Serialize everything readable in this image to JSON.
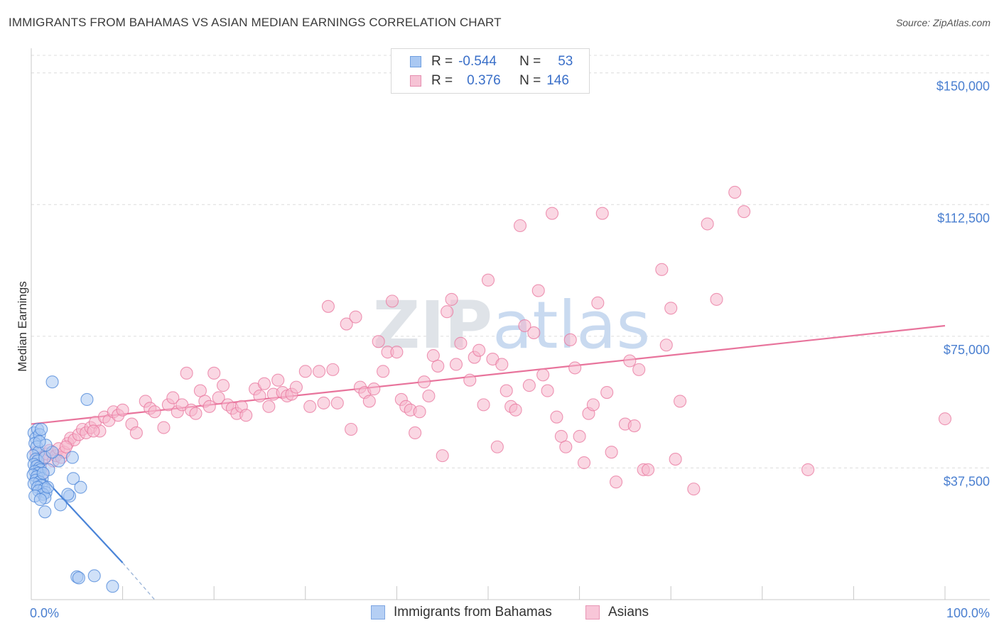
{
  "title": "IMMIGRANTS FROM BAHAMAS VS ASIAN MEDIAN EARNINGS CORRELATION CHART",
  "source": "Source: ZipAtlas.com",
  "legend": {
    "rows": [
      {
        "r_label": "R =",
        "r_value": "-0.544",
        "n_label": "N =",
        "n_value": "53"
      },
      {
        "r_label": "R =",
        "r_value": "0.376",
        "n_label": "N =",
        "n_value": "146"
      }
    ]
  },
  "bottom_legend": [
    "Immigrants from Bahamas",
    "Asians"
  ],
  "colors": {
    "blue": "#4a84d8",
    "blue_fill": "#a9c8f2",
    "pink": "#e8749c",
    "pink_fill": "#f6b6cc",
    "grid": "#dcdcdc",
    "axis_text": "#4a7fd0"
  },
  "chart_data": {
    "type": "scatter",
    "title": "IMMIGRANTS FROM BAHAMAS VS ASIAN MEDIAN EARNINGS CORRELATION CHART",
    "xlabel": "",
    "ylabel": "Median Earnings",
    "xlim": [
      0,
      100
    ],
    "ylim": [
      0,
      155000
    ],
    "x_tick_labels": [
      "0.0%",
      "100.0%"
    ],
    "y_ticks": [
      37500,
      75000,
      112500,
      150000
    ],
    "y_tick_labels": [
      "$37,500",
      "$75,000",
      "$112,500",
      "$150,000"
    ],
    "watermark": "ZIPatlas",
    "series": [
      {
        "name": "Immigrants from Bahamas",
        "color": "blue",
        "trend": {
          "x": [
            0,
            10
          ],
          "y": [
            38500,
            10500
          ],
          "dashed_to": {
            "x": 13.5,
            "y": 0
          }
        },
        "points": [
          [
            0.3,
            47500
          ],
          [
            0.5,
            46000
          ],
          [
            0.7,
            48500
          ],
          [
            0.9,
            47000
          ],
          [
            0.4,
            44500
          ],
          [
            0.6,
            43500
          ],
          [
            0.8,
            42000
          ],
          [
            0.2,
            41000
          ],
          [
            0.5,
            40000
          ],
          [
            0.7,
            39500
          ],
          [
            0.3,
            38500
          ],
          [
            0.6,
            38000
          ],
          [
            0.9,
            37500
          ],
          [
            1.0,
            37000
          ],
          [
            0.4,
            36500
          ],
          [
            0.8,
            36000
          ],
          [
            0.2,
            35500
          ],
          [
            0.6,
            35000
          ],
          [
            1.2,
            34500
          ],
          [
            0.5,
            34000
          ],
          [
            0.9,
            33500
          ],
          [
            0.3,
            33000
          ],
          [
            1.1,
            32500
          ],
          [
            0.7,
            32000
          ],
          [
            1.4,
            31500
          ],
          [
            0.8,
            31000
          ],
          [
            1.6,
            30500
          ],
          [
            1.3,
            30000
          ],
          [
            0.4,
            29500
          ],
          [
            1.5,
            29000
          ],
          [
            1.0,
            28500
          ],
          [
            1.8,
            32000
          ],
          [
            1.5,
            40500
          ],
          [
            3.0,
            39500
          ],
          [
            4.5,
            40500
          ],
          [
            4.6,
            34500
          ],
          [
            5.4,
            32000
          ],
          [
            4.2,
            29500
          ],
          [
            4.0,
            30000
          ],
          [
            3.2,
            27000
          ],
          [
            1.5,
            25000
          ],
          [
            2.3,
            42000
          ],
          [
            1.9,
            37000
          ],
          [
            1.6,
            44000
          ],
          [
            2.3,
            62000
          ],
          [
            6.1,
            57000
          ],
          [
            5.0,
            6500
          ],
          [
            5.2,
            6200
          ],
          [
            6.9,
            6800
          ],
          [
            8.9,
            3800
          ],
          [
            1.1,
            48500
          ],
          [
            0.9,
            45000
          ],
          [
            1.3,
            36000
          ]
        ]
      },
      {
        "name": "Asians",
        "color": "pink",
        "trend": {
          "x": [
            0,
            100
          ],
          "y": [
            50000,
            78000
          ]
        },
        "points": [
          [
            0.5,
            42000
          ],
          [
            0.8,
            40000
          ],
          [
            1.0,
            38000
          ],
          [
            1.2,
            36000
          ],
          [
            1.4,
            40500
          ],
          [
            1.7,
            41500
          ],
          [
            2.0,
            42500
          ],
          [
            2.4,
            39500
          ],
          [
            2.7,
            41000
          ],
          [
            3.0,
            43000
          ],
          [
            3.3,
            40500
          ],
          [
            3.6,
            42000
          ],
          [
            4.0,
            44500
          ],
          [
            4.3,
            46000
          ],
          [
            4.7,
            45500
          ],
          [
            5.2,
            47000
          ],
          [
            5.6,
            48500
          ],
          [
            6.0,
            47500
          ],
          [
            6.5,
            49000
          ],
          [
            7.0,
            50500
          ],
          [
            7.5,
            48000
          ],
          [
            8.0,
            52000
          ],
          [
            8.5,
            51000
          ],
          [
            9.0,
            53500
          ],
          [
            9.5,
            52500
          ],
          [
            10.0,
            54000
          ],
          [
            11.0,
            50000
          ],
          [
            11.5,
            47500
          ],
          [
            12.5,
            56500
          ],
          [
            13.0,
            54500
          ],
          [
            13.5,
            53500
          ],
          [
            14.5,
            49000
          ],
          [
            15.0,
            55500
          ],
          [
            15.5,
            57500
          ],
          [
            16.0,
            53500
          ],
          [
            16.5,
            55500
          ],
          [
            17.0,
            64500
          ],
          [
            17.5,
            54000
          ],
          [
            18.0,
            53000
          ],
          [
            18.5,
            59500
          ],
          [
            19.0,
            56500
          ],
          [
            19.5,
            55000
          ],
          [
            20.0,
            64500
          ],
          [
            20.5,
            57500
          ],
          [
            21.0,
            61000
          ],
          [
            21.5,
            55500
          ],
          [
            22.0,
            54500
          ],
          [
            22.5,
            53000
          ],
          [
            23.0,
            55000
          ],
          [
            23.5,
            52500
          ],
          [
            24.5,
            60000
          ],
          [
            25.0,
            58000
          ],
          [
            25.5,
            61500
          ],
          [
            26.0,
            55000
          ],
          [
            26.5,
            58500
          ],
          [
            27.0,
            62500
          ],
          [
            27.5,
            59000
          ],
          [
            28.0,
            58000
          ],
          [
            28.5,
            58500
          ],
          [
            29.0,
            60500
          ],
          [
            30.0,
            65000
          ],
          [
            30.5,
            55000
          ],
          [
            31.5,
            65000
          ],
          [
            32.0,
            56000
          ],
          [
            32.5,
            83500
          ],
          [
            33.0,
            65500
          ],
          [
            33.5,
            56000
          ],
          [
            34.5,
            78500
          ],
          [
            35.0,
            48500
          ],
          [
            35.5,
            80500
          ],
          [
            36.0,
            60500
          ],
          [
            36.5,
            59000
          ],
          [
            37.0,
            56500
          ],
          [
            37.5,
            60000
          ],
          [
            38.0,
            73500
          ],
          [
            38.5,
            65000
          ],
          [
            39.0,
            70500
          ],
          [
            39.5,
            85000
          ],
          [
            40.0,
            70500
          ],
          [
            40.5,
            57000
          ],
          [
            41.0,
            55000
          ],
          [
            41.5,
            54000
          ],
          [
            42.0,
            47500
          ],
          [
            42.5,
            53500
          ],
          [
            43.0,
            62000
          ],
          [
            43.5,
            58000
          ],
          [
            44.0,
            69500
          ],
          [
            44.5,
            66500
          ],
          [
            45.0,
            41000
          ],
          [
            45.5,
            82000
          ],
          [
            46.0,
            85500
          ],
          [
            46.5,
            67000
          ],
          [
            47.0,
            73000
          ],
          [
            48.0,
            62500
          ],
          [
            48.5,
            69000
          ],
          [
            49.0,
            71000
          ],
          [
            49.5,
            55500
          ],
          [
            50.0,
            91000
          ],
          [
            50.5,
            68500
          ],
          [
            51.0,
            43500
          ],
          [
            51.5,
            67000
          ],
          [
            52.0,
            59500
          ],
          [
            52.5,
            55000
          ],
          [
            53.0,
            54000
          ],
          [
            53.5,
            106500
          ],
          [
            54.0,
            78000
          ],
          [
            54.5,
            61000
          ],
          [
            55.0,
            76000
          ],
          [
            55.5,
            88000
          ],
          [
            56.0,
            64000
          ],
          [
            56.5,
            59500
          ],
          [
            57.0,
            110000
          ],
          [
            57.5,
            52000
          ],
          [
            58.0,
            46500
          ],
          [
            58.5,
            43500
          ],
          [
            59.0,
            74000
          ],
          [
            59.5,
            66000
          ],
          [
            60.0,
            46500
          ],
          [
            60.5,
            39000
          ],
          [
            61.0,
            53000
          ],
          [
            61.5,
            55500
          ],
          [
            62.0,
            84500
          ],
          [
            62.5,
            110000
          ],
          [
            63.0,
            59000
          ],
          [
            63.5,
            42000
          ],
          [
            64.0,
            33500
          ],
          [
            65.0,
            50000
          ],
          [
            65.5,
            68000
          ],
          [
            66.0,
            49500
          ],
          [
            66.5,
            65500
          ],
          [
            67.0,
            37000
          ],
          [
            67.5,
            37000
          ],
          [
            69.0,
            94000
          ],
          [
            69.5,
            72500
          ],
          [
            70.0,
            83000
          ],
          [
            70.5,
            40000
          ],
          [
            71.0,
            56500
          ],
          [
            72.5,
            31500
          ],
          [
            74.0,
            107000
          ],
          [
            75.0,
            85500
          ],
          [
            77.0,
            116000
          ],
          [
            78.0,
            110500
          ],
          [
            85.0,
            37000
          ],
          [
            100.0,
            51500
          ],
          [
            3.8,
            43500
          ],
          [
            6.8,
            48000
          ]
        ]
      }
    ]
  }
}
